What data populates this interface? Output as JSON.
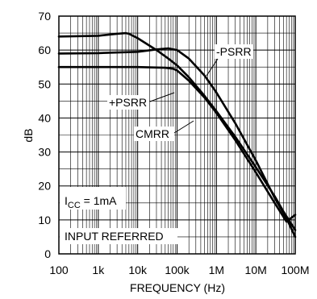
{
  "chart_data": {
    "type": "line",
    "xlabel": "FREQUENCY (Hz)",
    "ylabel": "dB",
    "xscale": "log",
    "xlim": [
      100,
      100000000
    ],
    "ylim": [
      0,
      70
    ],
    "grid": true,
    "x_tick_labels": [
      "100",
      "1k",
      "10k",
      "100k",
      "1M",
      "10M",
      "100M"
    ],
    "y_tick_labels": [
      "0",
      "10",
      "20",
      "30",
      "40",
      "50",
      "60",
      "70"
    ],
    "series": [
      {
        "name": "CMRR",
        "x": [
          100,
          1000,
          3000,
          5000,
          6000,
          10000,
          30000,
          60000,
          100000,
          200000,
          500000,
          1000000,
          3000000,
          10000000,
          30000000,
          50000000,
          100000000
        ],
        "y": [
          64,
          64.2,
          64.8,
          65,
          64.8,
          63.5,
          60,
          57.5,
          55.5,
          52,
          46.5,
          42,
          34.5,
          25.5,
          17,
          12.5,
          7
        ]
      },
      {
        "name": "-PSRR",
        "x": [
          100,
          1000,
          10000,
          30000,
          60000,
          100000,
          200000,
          500000,
          1000000,
          3000000,
          10000000,
          30000000,
          60000000,
          100000000
        ],
        "y": [
          59,
          59.1,
          59.5,
          60.2,
          60.5,
          60,
          57.5,
          52.5,
          47.5,
          38.5,
          27.5,
          16.5,
          10.5,
          5
        ]
      },
      {
        "name": "+PSRR",
        "x": [
          100,
          1000,
          10000,
          50000,
          80000,
          100000,
          200000,
          500000,
          1000000,
          3000000,
          10000000,
          30000000,
          60000000,
          100000000
        ],
        "y": [
          55,
          55,
          55,
          54.8,
          54.5,
          54,
          51,
          46,
          41.5,
          33.5,
          24,
          15,
          9.5,
          11.5
        ]
      }
    ],
    "annotations": [
      "-PSRR",
      "+PSRR",
      "CMRR",
      "I",
      "CC",
      " = 1mA",
      "INPUT REFERRED"
    ]
  }
}
